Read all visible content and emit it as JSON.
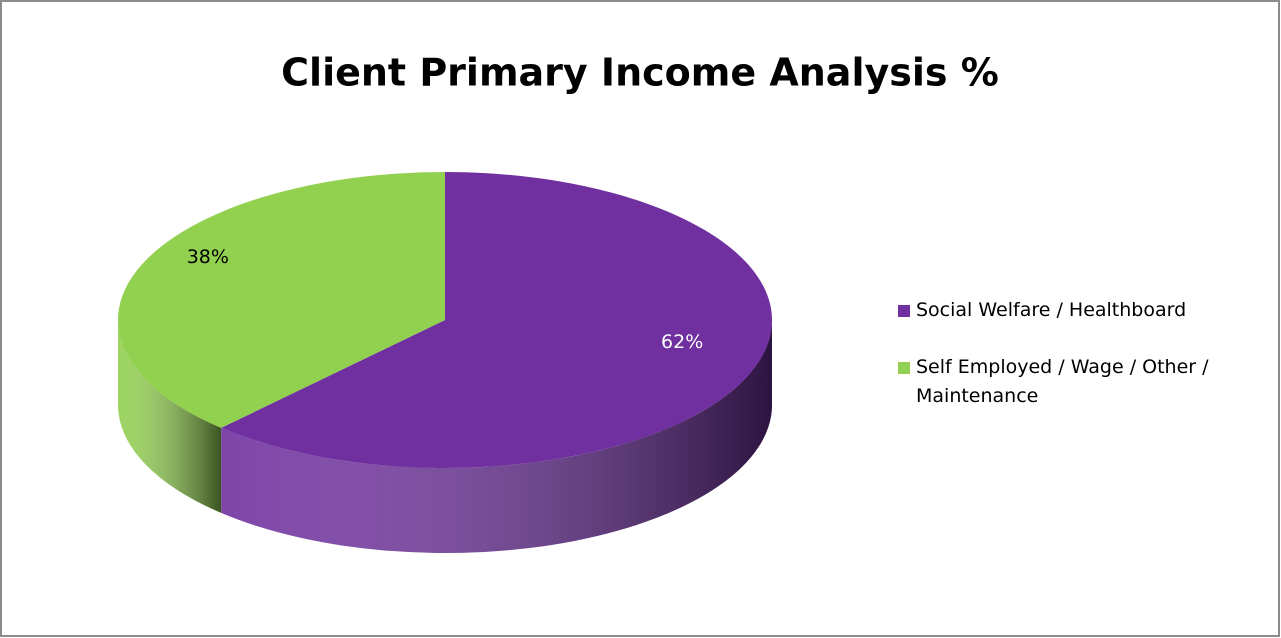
{
  "chart_data": {
    "type": "pie3d",
    "title": "Client Primary Income Analysis %",
    "categories": [
      "Social Welfare / Healthboard",
      "Self Employed / Wage / Other / Maintenance"
    ],
    "values": [
      62,
      38
    ],
    "value_labels": [
      "62%",
      "38%"
    ],
    "colors": [
      "#7030a0",
      "#92d050"
    ],
    "label_colors": [
      "#ffffff",
      "#000000"
    ],
    "legend": "right"
  }
}
